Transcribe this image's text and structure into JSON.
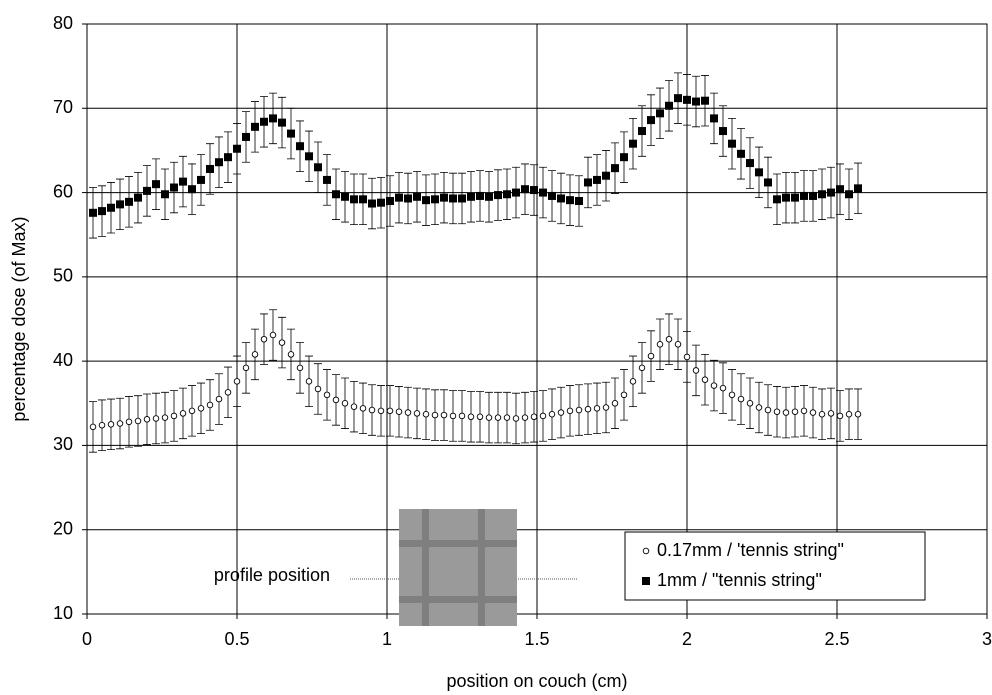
{
  "chart_data": {
    "type": "scatter",
    "xlabel": "position on couch (cm)",
    "ylabel": "percentage dose (of Max)",
    "annotation": "profile position",
    "xlim": [
      0,
      3
    ],
    "xticks": [
      0,
      0.5,
      1,
      1.5,
      2,
      2.5,
      3
    ],
    "ylim": [
      10,
      80
    ],
    "yticks": [
      10,
      20,
      30,
      40,
      50,
      60,
      70,
      80
    ],
    "grid": true,
    "legend": "lower right",
    "x": [
      0.02,
      0.05,
      0.08,
      0.11,
      0.14,
      0.17,
      0.2,
      0.23,
      0.26,
      0.29,
      0.32,
      0.35,
      0.38,
      0.41,
      0.44,
      0.47,
      0.5,
      0.53,
      0.56,
      0.59,
      0.62,
      0.65,
      0.68,
      0.71,
      0.74,
      0.77,
      0.8,
      0.83,
      0.86,
      0.89,
      0.92,
      0.95,
      0.98,
      1.01,
      1.04,
      1.07,
      1.1,
      1.13,
      1.16,
      1.19,
      1.22,
      1.25,
      1.28,
      1.31,
      1.34,
      1.37,
      1.4,
      1.43,
      1.46,
      1.49,
      1.52,
      1.55,
      1.58,
      1.61,
      1.64,
      1.67,
      1.7,
      1.73,
      1.76,
      1.79,
      1.82,
      1.85,
      1.88,
      1.91,
      1.94,
      1.97,
      2.0,
      2.03,
      2.06,
      2.09,
      2.12,
      2.15,
      2.18,
      2.21,
      2.24,
      2.27,
      2.3,
      2.33,
      2.36,
      2.39,
      2.42,
      2.45,
      2.48,
      2.51,
      2.54,
      2.57
    ],
    "series": [
      {
        "name": "0.17mm / 'tennis string\"",
        "color": "#000000",
        "marker": "circle",
        "error": 3,
        "values": [
          32.2,
          32.4,
          32.5,
          32.6,
          32.8,
          32.9,
          33.1,
          33.2,
          33.3,
          33.5,
          33.8,
          34.1,
          34.4,
          34.8,
          35.5,
          36.3,
          37.6,
          39.2,
          40.8,
          42.6,
          43.1,
          42.2,
          40.8,
          39.2,
          37.6,
          36.7,
          36.0,
          35.4,
          35.0,
          34.6,
          34.4,
          34.2,
          34.1,
          34.1,
          34.0,
          33.9,
          33.8,
          33.7,
          33.6,
          33.6,
          33.5,
          33.5,
          33.4,
          33.4,
          33.3,
          33.3,
          33.3,
          33.2,
          33.3,
          33.4,
          33.5,
          33.7,
          33.9,
          34.1,
          34.2,
          34.3,
          34.4,
          34.5,
          35.0,
          36.0,
          37.6,
          39.2,
          40.6,
          42.0,
          42.6,
          42.0,
          40.5,
          38.9,
          37.8,
          37.1,
          36.8,
          36.0,
          35.5,
          35.0,
          34.5,
          34.2,
          34.0,
          33.9,
          34.0,
          34.1,
          33.9,
          33.7,
          33.8,
          33.5,
          33.7,
          33.7
        ]
      },
      {
        "name": "1mm / \"tennis string\"",
        "color": "#000000",
        "marker": "square",
        "error": 3,
        "values": [
          57.6,
          57.8,
          58.2,
          58.6,
          58.9,
          59.4,
          60.2,
          61.0,
          59.8,
          60.6,
          61.3,
          60.4,
          61.5,
          62.8,
          63.6,
          64.2,
          65.2,
          66.6,
          67.8,
          68.4,
          68.8,
          68.3,
          67.0,
          65.5,
          64.3,
          63.0,
          61.5,
          59.8,
          59.5,
          59.2,
          59.2,
          58.7,
          58.8,
          59.0,
          59.4,
          59.3,
          59.5,
          59.1,
          59.2,
          59.4,
          59.3,
          59.3,
          59.5,
          59.6,
          59.5,
          59.7,
          59.8,
          60.0,
          60.4,
          60.3,
          60.0,
          59.6,
          59.3,
          59.1,
          59.0,
          61.2,
          61.5,
          62.0,
          62.9,
          64.2,
          65.8,
          67.3,
          68.6,
          69.4,
          70.3,
          71.2,
          71.0,
          70.8,
          70.9,
          68.8,
          67.3,
          65.8,
          64.6,
          63.5,
          62.4,
          61.2,
          59.2,
          59.4,
          59.4,
          59.6,
          59.6,
          59.8,
          60.0,
          60.4,
          59.8,
          60.5
        ]
      }
    ]
  }
}
